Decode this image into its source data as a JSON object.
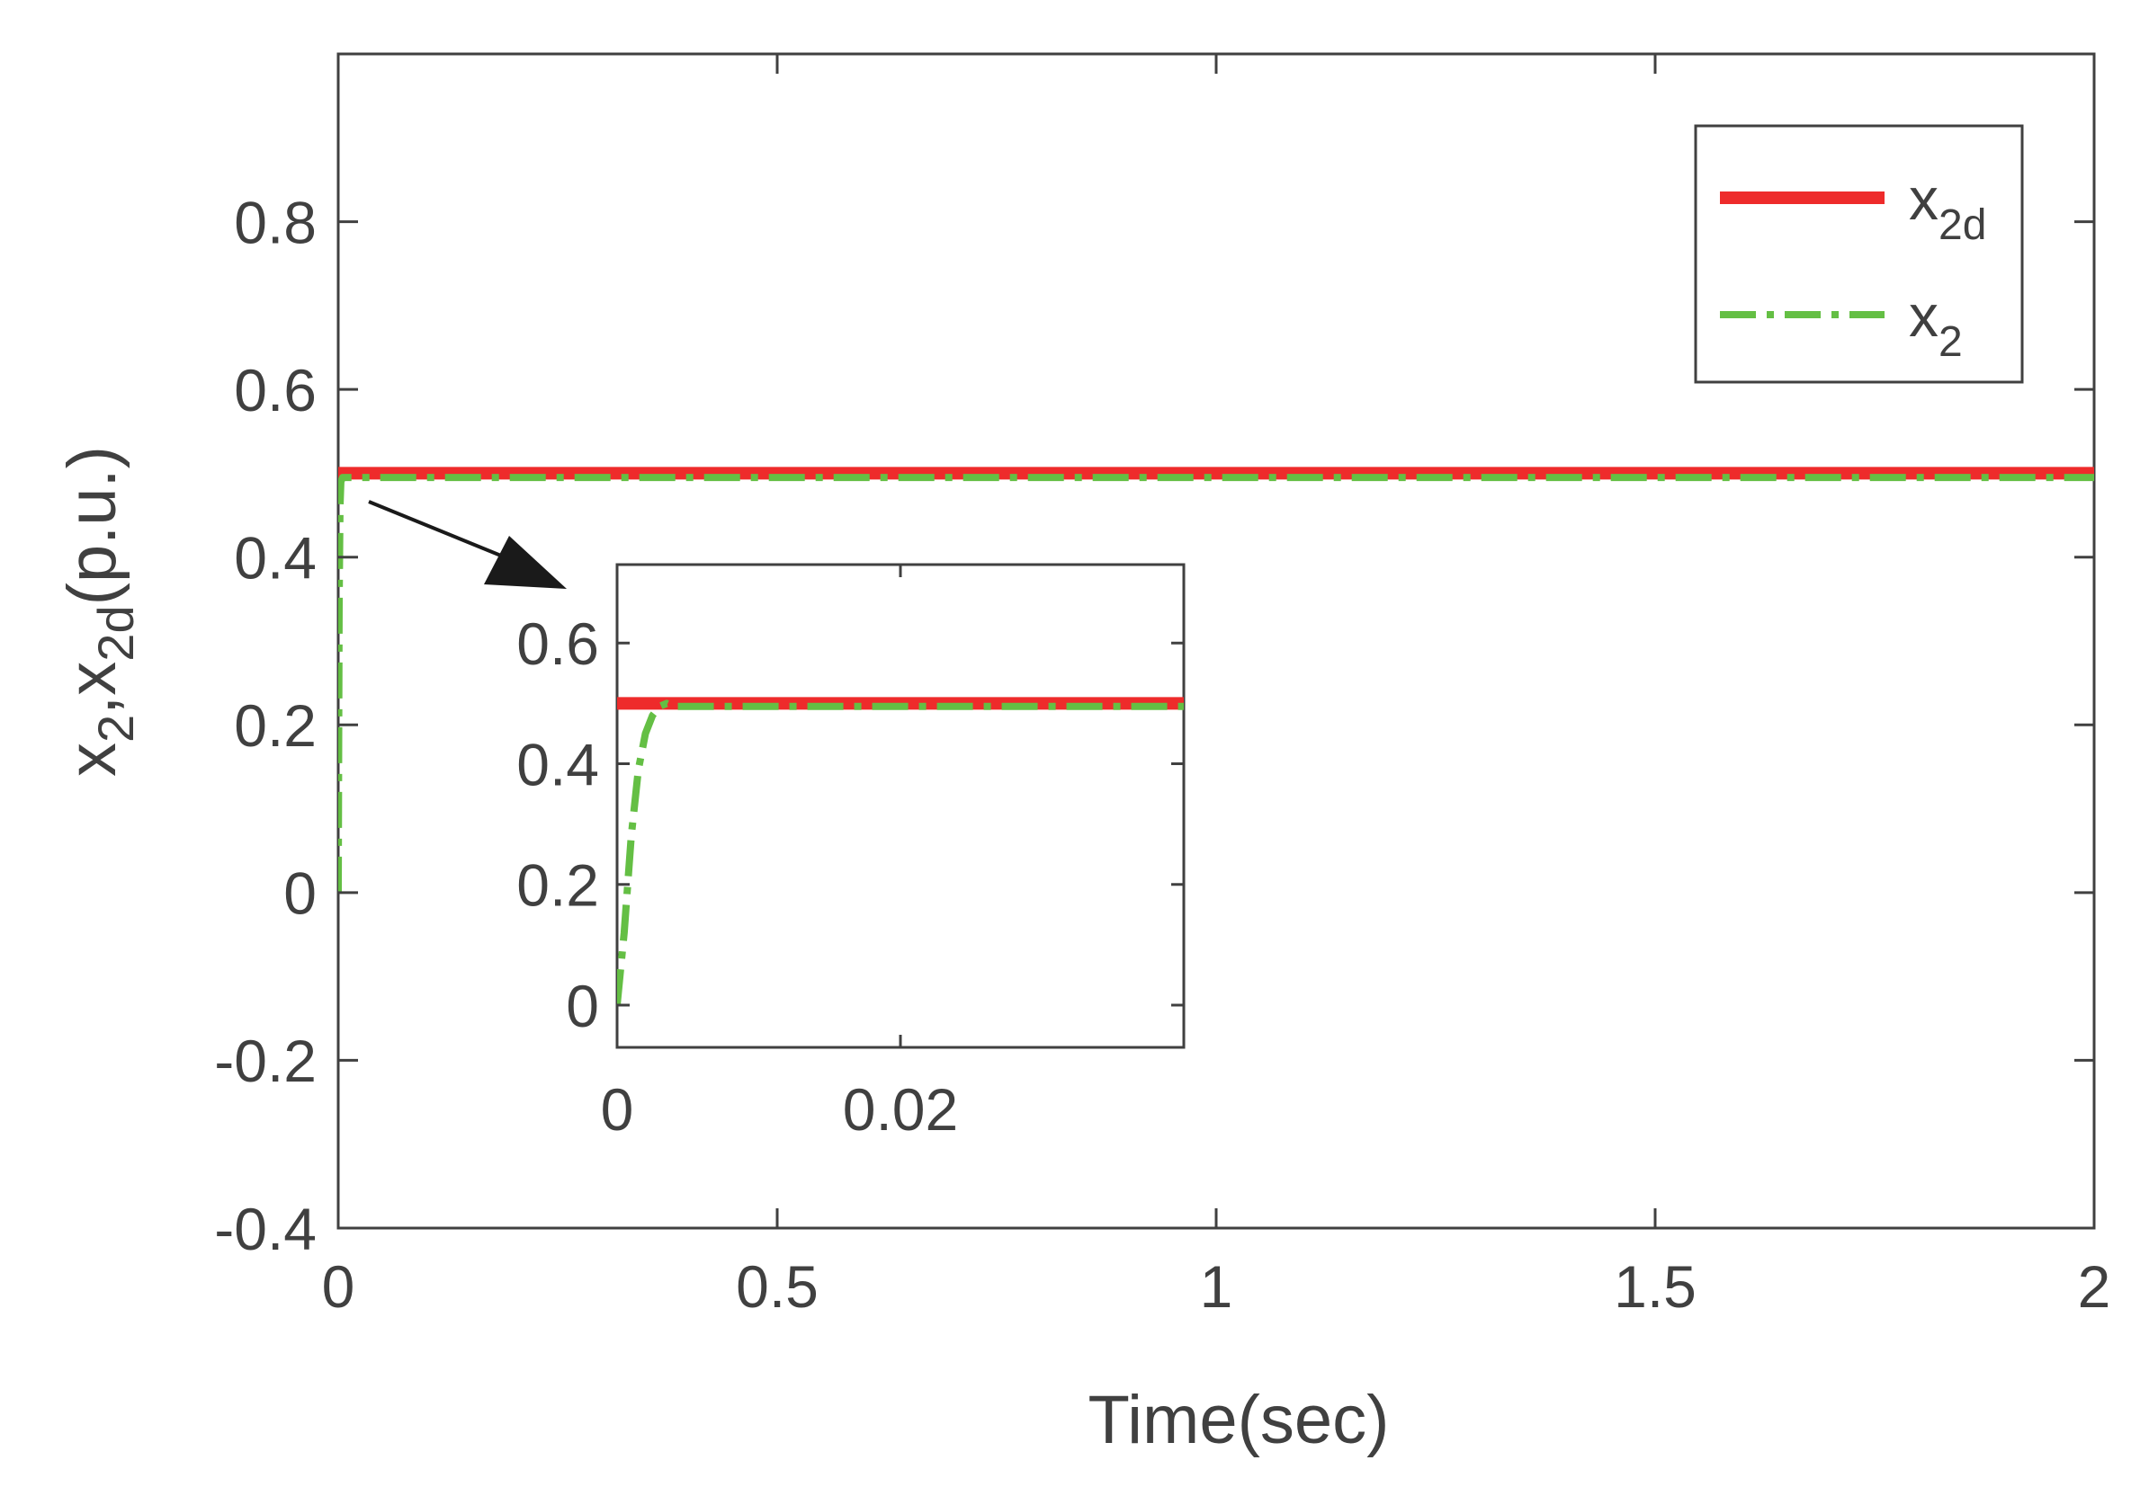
{
  "chart_data": [
    {
      "type": "line",
      "title": "",
      "xlabel": "Time(sec)",
      "ylabel": {
        "base": "x",
        "sub1": "2",
        "comma": ",",
        "base2": "x",
        "sub2": "2d",
        "unit": "(p.u.)"
      },
      "xlim": [
        0,
        2
      ],
      "ylim": [
        -0.4,
        1.0
      ],
      "xticks": [
        0,
        0.5,
        1,
        1.5,
        2
      ],
      "xtick_labels": [
        "0",
        "0.5",
        "1",
        "1.5",
        "2"
      ],
      "yticks": [
        -0.4,
        -0.2,
        0,
        0.2,
        0.4,
        0.6,
        0.8
      ],
      "ytick_labels": [
        "-0.4",
        "-0.2",
        "0",
        "0.2",
        "0.4",
        "0.6",
        "0.8"
      ],
      "grid": false,
      "legend": {
        "position": "top-right",
        "entries": [
          {
            "base": "x",
            "sub": "2d"
          },
          {
            "base": "x",
            "sub": "2"
          }
        ]
      },
      "series": [
        {
          "key": "x2d",
          "style": "solid",
          "color": "#ee2b2b",
          "x": [
            0,
            2
          ],
          "y": [
            0.5,
            0.5
          ]
        },
        {
          "key": "x2",
          "style": "dashdot",
          "color": "#64bf44",
          "x": [
            0,
            0.0005,
            0.001,
            0.002,
            0.003,
            0.005,
            2
          ],
          "y": [
            0,
            0.18,
            0.34,
            0.46,
            0.49,
            0.495,
            0.495
          ]
        }
      ]
    },
    {
      "type": "line",
      "title": "",
      "xlim": [
        0,
        0.04
      ],
      "ylim": [
        -0.07,
        0.73
      ],
      "xticks": [
        0,
        0.02
      ],
      "xtick_labels": [
        "0",
        "0.02"
      ],
      "yticks": [
        0,
        0.2,
        0.4,
        0.6
      ],
      "ytick_labels": [
        "0",
        "0.2",
        "0.4",
        "0.6"
      ],
      "grid": false,
      "series": [
        {
          "key": "x2d",
          "style": "solid",
          "color": "#ee2b2b",
          "x": [
            0,
            0.04
          ],
          "y": [
            0.5,
            0.5
          ]
        },
        {
          "key": "x2",
          "style": "dashdot",
          "color": "#64bf44",
          "x": [
            0,
            0.0005,
            0.001,
            0.0015,
            0.002,
            0.0025,
            0.003,
            0.0035,
            0.004,
            0.005,
            0.04
          ],
          "y": [
            0,
            0.12,
            0.28,
            0.39,
            0.45,
            0.48,
            0.495,
            0.5,
            0.495,
            0.495,
            0.495
          ]
        }
      ]
    }
  ]
}
